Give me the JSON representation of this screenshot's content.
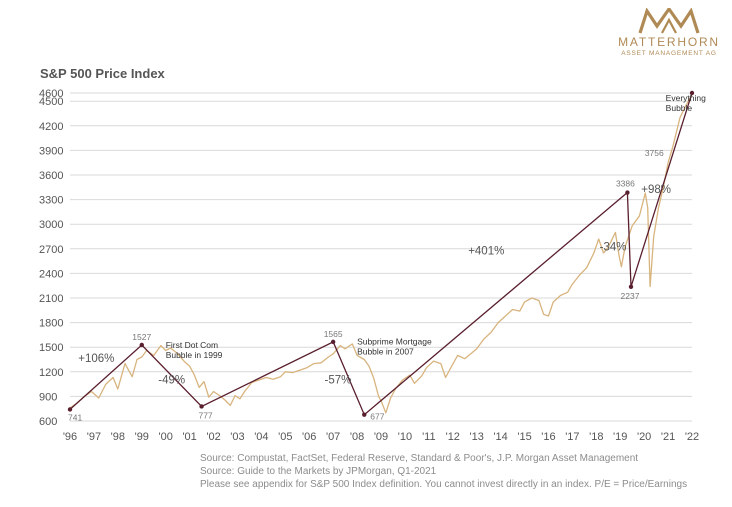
{
  "logo": {
    "name": "MATTERHORN",
    "subtitle": "ASSET MANAGEMENT AG"
  },
  "sources": [
    "Source: Compustat, FactSet, Federal Reserve, Standard & Poor's, J.P. Morgan Asset Management",
    "Source: Guide to the Markets by JPMorgan, Q1-2021",
    "Please see appendix for S&P 500 Index definition. You cannot invest directly in an index. P/E = Price/Earnings"
  ],
  "colors": {
    "price_line": "#d8b47e",
    "trend_line": "#5a1f2e",
    "grid": "#d9d9d9",
    "logo": "#b08a55"
  },
  "chart_data": {
    "type": "line",
    "title": "S&P 500 Price Index",
    "xlabel": "",
    "ylabel": "",
    "xlim": [
      1996,
      2022
    ],
    "ylim": [
      600,
      4600
    ],
    "y_ticks": [
      600,
      900,
      1200,
      1500,
      1800,
      2100,
      2400,
      2700,
      3000,
      3300,
      3600,
      3900,
      4200,
      4500,
      4600
    ],
    "x_ticks": [
      {
        "x": 1996,
        "label": "'96"
      },
      {
        "x": 1997,
        "label": "'97"
      },
      {
        "x": 1998,
        "label": "'98"
      },
      {
        "x": 1999,
        "label": "'99"
      },
      {
        "x": 2000,
        "label": "'00"
      },
      {
        "x": 2001,
        "label": "'01"
      },
      {
        "x": 2002,
        "label": "'02"
      },
      {
        "x": 2003,
        "label": "'03"
      },
      {
        "x": 2004,
        "label": "'04"
      },
      {
        "x": 2005,
        "label": "'05"
      },
      {
        "x": 2006,
        "label": "'06"
      },
      {
        "x": 2007,
        "label": "'07"
      },
      {
        "x": 2008,
        "label": "'08"
      },
      {
        "x": 2009,
        "label": "'09"
      },
      {
        "x": 2010,
        "label": "'10"
      },
      {
        "x": 2011,
        "label": "'11"
      },
      {
        "x": 2012,
        "label": "'12"
      },
      {
        "x": 2013,
        "label": "'13"
      },
      {
        "x": 2014,
        "label": "'14"
      },
      {
        "x": 2015,
        "label": "'15"
      },
      {
        "x": 2016,
        "label": "'16"
      },
      {
        "x": 2017,
        "label": "'17"
      },
      {
        "x": 2018,
        "label": "'18"
      },
      {
        "x": 2019,
        "label": "'19"
      },
      {
        "x": 2020,
        "label": "'20"
      },
      {
        "x": 2021,
        "label": "'21"
      },
      {
        "x": 2022,
        "label": "'22"
      }
    ],
    "grid": true,
    "series": [
      {
        "role": "index",
        "points": [
          [
            1996.0,
            760
          ],
          [
            1996.3,
            820
          ],
          [
            1996.6,
            900
          ],
          [
            1996.9,
            960
          ],
          [
            1997.2,
            880
          ],
          [
            1997.5,
            1050
          ],
          [
            1997.8,
            1130
          ],
          [
            1998.0,
            990
          ],
          [
            1998.3,
            1300
          ],
          [
            1998.6,
            1140
          ],
          [
            1998.8,
            1350
          ],
          [
            1999.0,
            1380
          ],
          [
            1999.2,
            1460
          ],
          [
            1999.5,
            1400
          ],
          [
            1999.8,
            1520
          ],
          [
            2000.0,
            1460
          ],
          [
            2000.2,
            1490
          ],
          [
            2000.5,
            1420
          ],
          [
            2000.8,
            1320
          ],
          [
            2001.0,
            1270
          ],
          [
            2001.2,
            1160
          ],
          [
            2001.4,
            1010
          ],
          [
            2001.6,
            1080
          ],
          [
            2001.8,
            890
          ],
          [
            2002.0,
            960
          ],
          [
            2002.3,
            900
          ],
          [
            2002.5,
            850
          ],
          [
            2002.7,
            790
          ],
          [
            2002.9,
            910
          ],
          [
            2003.1,
            870
          ],
          [
            2003.3,
            960
          ],
          [
            2003.6,
            1070
          ],
          [
            2003.9,
            1100
          ],
          [
            2004.2,
            1130
          ],
          [
            2004.5,
            1110
          ],
          [
            2004.8,
            1140
          ],
          [
            2005.0,
            1200
          ],
          [
            2005.3,
            1190
          ],
          [
            2005.6,
            1220
          ],
          [
            2005.9,
            1250
          ],
          [
            2006.2,
            1300
          ],
          [
            2006.5,
            1310
          ],
          [
            2006.8,
            1380
          ],
          [
            2007.0,
            1420
          ],
          [
            2007.3,
            1520
          ],
          [
            2007.5,
            1480
          ],
          [
            2007.8,
            1540
          ],
          [
            2008.0,
            1400
          ],
          [
            2008.3,
            1350
          ],
          [
            2008.5,
            1270
          ],
          [
            2008.7,
            1120
          ],
          [
            2008.9,
            900
          ],
          [
            2009.0,
            850
          ],
          [
            2009.2,
            700
          ],
          [
            2009.4,
            880
          ],
          [
            2009.6,
            990
          ],
          [
            2009.9,
            1100
          ],
          [
            2010.2,
            1160
          ],
          [
            2010.4,
            1060
          ],
          [
            2010.7,
            1150
          ],
          [
            2010.9,
            1250
          ],
          [
            2011.2,
            1330
          ],
          [
            2011.5,
            1300
          ],
          [
            2011.7,
            1130
          ],
          [
            2011.9,
            1240
          ],
          [
            2012.2,
            1400
          ],
          [
            2012.5,
            1360
          ],
          [
            2012.8,
            1430
          ],
          [
            2013.0,
            1480
          ],
          [
            2013.3,
            1600
          ],
          [
            2013.6,
            1680
          ],
          [
            2013.9,
            1800
          ],
          [
            2014.2,
            1880
          ],
          [
            2014.5,
            1960
          ],
          [
            2014.8,
            1940
          ],
          [
            2015.0,
            2050
          ],
          [
            2015.3,
            2100
          ],
          [
            2015.6,
            2070
          ],
          [
            2015.8,
            1900
          ],
          [
            2016.0,
            1880
          ],
          [
            2016.2,
            2050
          ],
          [
            2016.5,
            2130
          ],
          [
            2016.8,
            2170
          ],
          [
            2017.0,
            2270
          ],
          [
            2017.3,
            2380
          ],
          [
            2017.6,
            2470
          ],
          [
            2017.9,
            2650
          ],
          [
            2018.1,
            2820
          ],
          [
            2018.3,
            2650
          ],
          [
            2018.5,
            2720
          ],
          [
            2018.8,
            2900
          ],
          [
            2018.95,
            2620
          ],
          [
            2019.05,
            2480
          ],
          [
            2019.2,
            2720
          ],
          [
            2019.5,
            2980
          ],
          [
            2019.8,
            3100
          ],
          [
            2020.05,
            3380
          ],
          [
            2020.15,
            3200
          ],
          [
            2020.25,
            2240
          ],
          [
            2020.4,
            2850
          ],
          [
            2020.6,
            3200
          ],
          [
            2020.8,
            3450
          ],
          [
            2021.0,
            3750
          ],
          [
            2021.2,
            3950
          ],
          [
            2021.5,
            4300
          ],
          [
            2021.75,
            4450
          ],
          [
            2022.0,
            4580
          ]
        ]
      },
      {
        "role": "trend",
        "points": [
          [
            1996.0,
            741
          ],
          [
            1999.0,
            1527
          ],
          [
            2001.5,
            777
          ],
          [
            2007.0,
            1565
          ],
          [
            2008.3,
            677
          ],
          [
            2019.3,
            3386
          ],
          [
            2019.45,
            2237
          ],
          [
            2022.0,
            4600
          ]
        ]
      }
    ],
    "point_labels": [
      {
        "x": 1996.0,
        "y": 741,
        "label": "741"
      },
      {
        "x": 1999.0,
        "y": 1527,
        "label": "1527"
      },
      {
        "x": 2001.5,
        "y": 777,
        "label": "777"
      },
      {
        "x": 2007.0,
        "y": 1565,
        "label": "1565"
      },
      {
        "x": 2008.3,
        "y": 677,
        "label": "677"
      },
      {
        "x": 2019.3,
        "y": 3386,
        "label": "3386"
      },
      {
        "x": 2019.45,
        "y": 2237,
        "label": "2237"
      },
      {
        "x": 2020.8,
        "y": 3756,
        "label": "3756"
      }
    ],
    "change_labels": [
      {
        "x": 1997.1,
        "y": 1320,
        "label": "+106%"
      },
      {
        "x": 2000.25,
        "y": 1060,
        "label": "-49%"
      },
      {
        "x": 2007.2,
        "y": 1060,
        "label": "-57%"
      },
      {
        "x": 2013.4,
        "y": 2630,
        "label": "+401%"
      },
      {
        "x": 2018.7,
        "y": 2680,
        "label": "-34%"
      },
      {
        "x": 2020.5,
        "y": 3380,
        "label": "+98%"
      }
    ],
    "annotations": [
      {
        "x": 2000.0,
        "y": 1490,
        "lines": [
          "First Dot Com",
          "Bubble in 1999"
        ]
      },
      {
        "x": 2008.0,
        "y": 1530,
        "lines": [
          "Subprime Mortgage",
          "Bubble in 2007"
        ]
      },
      {
        "x": 2020.9,
        "y": 4500,
        "lines": [
          "Everything",
          "Bubble"
        ]
      }
    ]
  }
}
